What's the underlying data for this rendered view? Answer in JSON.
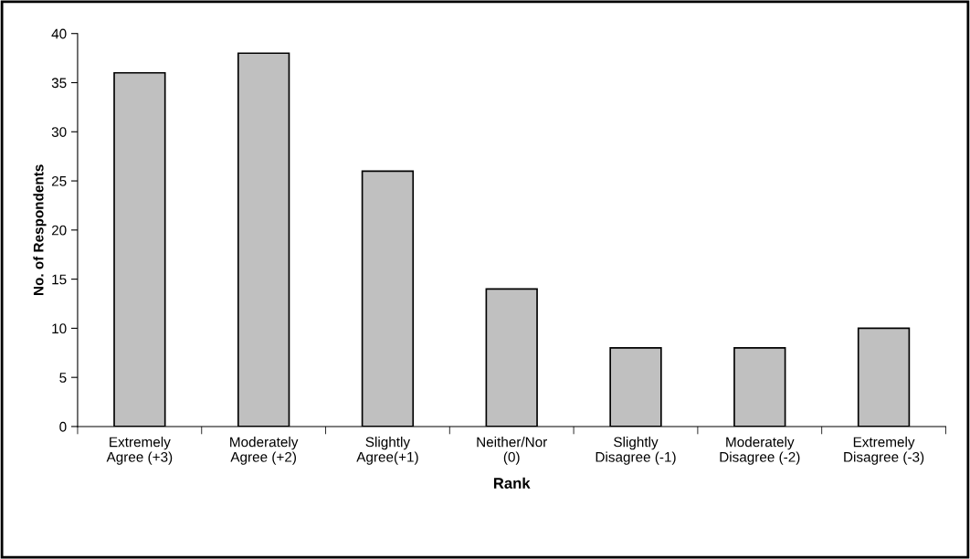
{
  "chart_data": {
    "type": "bar",
    "xlabel": "Rank",
    "ylabel": "No. of Respondents",
    "categories": [
      "Extremely\nAgree (+3)",
      "Moderately\nAgree (+2)",
      "Slightly\nAgree(+1)",
      "Neither/Nor\n(0)",
      "Slightly\nDisagree (-1)",
      "Moderately\nDisagree (-2)",
      "Extremely\nDisagree (-3)"
    ],
    "values": [
      36,
      38,
      26,
      14,
      8,
      8,
      10
    ],
    "color": "#c0c0c0",
    "ylim": [
      0,
      40
    ],
    "yticks": [
      0,
      5,
      10,
      15,
      20,
      25,
      30,
      35,
      40
    ],
    "grid": false
  }
}
